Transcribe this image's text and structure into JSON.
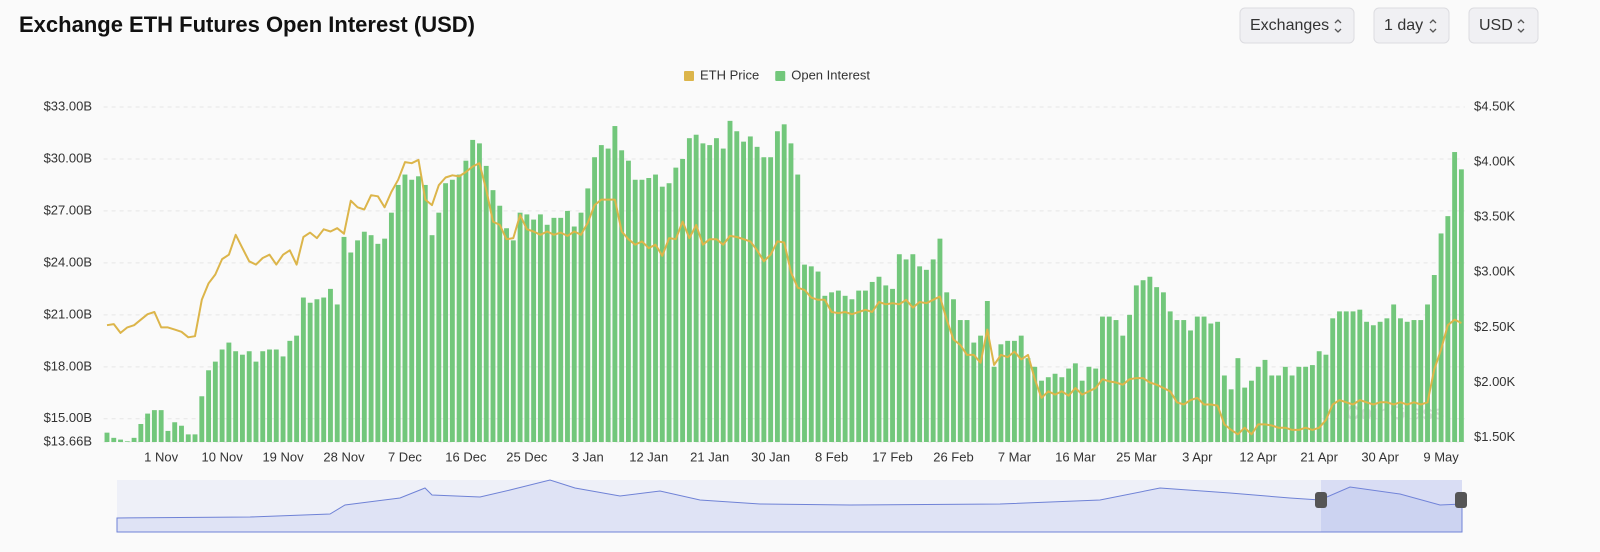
{
  "chart_data": {
    "type": "bar",
    "title": "Exchange ETH Futures Open Interest (USD)",
    "categories": [
      null,
      null,
      null,
      null,
      null,
      null,
      null,
      null,
      "1 Nov",
      null,
      null,
      null,
      null,
      null,
      null,
      null,
      null,
      "10 Nov",
      null,
      null,
      null,
      null,
      null,
      null,
      null,
      null,
      "19 Nov",
      null,
      null,
      null,
      null,
      null,
      null,
      null,
      null,
      "28 Nov",
      null,
      null,
      null,
      null,
      null,
      null,
      null,
      null,
      "7 Dec",
      null,
      null,
      null,
      null,
      null,
      null,
      null,
      null,
      "16 Dec",
      null,
      null,
      null,
      null,
      null,
      null,
      null,
      null,
      "25 Dec",
      null,
      null,
      null,
      null,
      null,
      null,
      null,
      null,
      "3 Jan",
      null,
      null,
      null,
      null,
      null,
      null,
      null,
      null,
      "12 Jan",
      null,
      null,
      null,
      null,
      null,
      null,
      null,
      null,
      "21 Jan",
      null,
      null,
      null,
      null,
      null,
      null,
      null,
      null,
      "30 Jan",
      null,
      null,
      null,
      null,
      null,
      null,
      null,
      null,
      "8 Feb",
      null,
      null,
      null,
      null,
      null,
      null,
      null,
      null,
      "17 Feb",
      null,
      null,
      null,
      null,
      null,
      null,
      null,
      null,
      "26 Feb",
      null,
      null,
      null,
      null,
      null,
      null,
      null,
      null,
      "7 Mar",
      null,
      null,
      null,
      null,
      null,
      null,
      null,
      null,
      "16 Mar",
      null,
      null,
      null,
      null,
      null,
      null,
      null,
      null,
      "25 Mar",
      null,
      null,
      null,
      null,
      null,
      null,
      null,
      null,
      "3 Apr",
      null,
      null,
      null,
      null,
      null,
      null,
      null,
      null,
      "12 Apr",
      null,
      null,
      null,
      null,
      null,
      null,
      null,
      null,
      "21 Apr",
      null,
      null,
      null,
      null,
      null,
      null,
      null,
      null,
      "30 Apr",
      null,
      null,
      null,
      null,
      null,
      null,
      null,
      null,
      "9 May",
      null,
      null,
      null
    ],
    "series": [
      {
        "name": "ETH Price",
        "type": "line",
        "axis": "y2",
        "color": "#dcb54a",
        "values": [
          2.52,
          2.53,
          2.45,
          2.5,
          2.52,
          2.57,
          2.62,
          2.64,
          2.5,
          2.5,
          2.48,
          2.46,
          2.41,
          2.42,
          2.75,
          2.9,
          2.98,
          3.12,
          3.16,
          3.34,
          3.22,
          3.1,
          3.07,
          3.13,
          3.16,
          3.07,
          3.16,
          3.2,
          3.07,
          3.32,
          3.36,
          3.31,
          3.39,
          3.37,
          3.4,
          3.35,
          3.65,
          3.59,
          3.57,
          3.7,
          3.69,
          3.59,
          3.73,
          3.84,
          4.0,
          3.99,
          4.02,
          3.66,
          3.61,
          3.79,
          3.86,
          3.88,
          3.87,
          3.91,
          3.96,
          3.99,
          3.75,
          3.46,
          3.43,
          3.3,
          3.31,
          3.52,
          3.39,
          3.37,
          3.34,
          3.37,
          3.34,
          3.36,
          3.33,
          3.37,
          3.34,
          3.45,
          3.61,
          3.66,
          3.66,
          3.66,
          3.37,
          3.3,
          3.25,
          3.28,
          3.22,
          3.25,
          3.15,
          3.31,
          3.3,
          3.46,
          3.31,
          3.43,
          3.25,
          3.3,
          3.3,
          3.25,
          3.33,
          3.32,
          3.3,
          3.28,
          3.2,
          3.1,
          3.16,
          3.28,
          3.27,
          3.0,
          2.86,
          2.84,
          2.77,
          2.75,
          2.75,
          2.64,
          2.63,
          2.64,
          2.62,
          2.64,
          2.66,
          2.64,
          2.73,
          2.71,
          2.72,
          2.71,
          2.75,
          2.68,
          2.73,
          2.72,
          2.75,
          2.78,
          2.57,
          2.39,
          2.34,
          2.25,
          2.25,
          2.18,
          2.48,
          2.16,
          2.25,
          2.23,
          2.28,
          2.21,
          2.25,
          2.03,
          1.86,
          1.92,
          1.89,
          1.92,
          1.88,
          1.95,
          1.89,
          1.92,
          1.95,
          2.03,
          2.01,
          2.0,
          1.98,
          2.03,
          2.04,
          2.04,
          2.0,
          1.98,
          1.95,
          1.92,
          1.82,
          1.8,
          1.84,
          1.86,
          1.8,
          1.8,
          1.79,
          1.62,
          1.57,
          1.53,
          1.59,
          1.53,
          1.62,
          1.62,
          1.61,
          1.59,
          1.59,
          1.57,
          1.57,
          1.59,
          1.57,
          1.59,
          1.66,
          1.8,
          1.84,
          1.82,
          1.8,
          1.84,
          1.82,
          1.8,
          1.82,
          1.82,
          1.8,
          1.82,
          1.8,
          1.82,
          1.8,
          1.82,
          2.12,
          2.3,
          2.52,
          2.57,
          2.54
        ]
      },
      {
        "name": "Open Interest",
        "type": "bar",
        "color": "#72c77b",
        "values": [
          14.2,
          13.9,
          13.8,
          13.7,
          13.9,
          14.7,
          15.3,
          15.5,
          15.5,
          14.3,
          14.8,
          14.6,
          14.1,
          14.1,
          16.3,
          17.8,
          18.3,
          19.0,
          19.4,
          18.9,
          18.7,
          18.9,
          18.3,
          18.9,
          19.0,
          19.0,
          18.6,
          19.5,
          19.8,
          22.0,
          21.7,
          21.9,
          22.0,
          22.5,
          21.6,
          25.5,
          24.6,
          25.3,
          25.8,
          25.6,
          25.1,
          25.4,
          26.9,
          28.5,
          29.1,
          28.8,
          29.0,
          28.5,
          25.6,
          26.9,
          28.6,
          28.8,
          29.1,
          29.9,
          31.1,
          30.9,
          29.6,
          28.2,
          27.3,
          26.0,
          25.3,
          26.9,
          26.8,
          26.5,
          26.8,
          26.2,
          26.6,
          26.6,
          27.0,
          26.1,
          26.9,
          28.3,
          30.1,
          30.8,
          30.6,
          31.9,
          30.5,
          29.9,
          28.8,
          28.8,
          28.9,
          29.1,
          28.4,
          28.6,
          29.5,
          30.0,
          31.2,
          31.4,
          30.9,
          30.8,
          31.2,
          30.6,
          32.2,
          31.6,
          31.0,
          31.3,
          30.7,
          30.1,
          30.1,
          31.6,
          32.0,
          30.9,
          29.1,
          23.9,
          23.8,
          23.5,
          22.1,
          22.3,
          22.4,
          22.1,
          21.9,
          22.4,
          22.4,
          22.9,
          23.2,
          22.7,
          22.5,
          24.5,
          24.2,
          24.5,
          23.8,
          23.6,
          24.2,
          25.4,
          22.3,
          21.9,
          20.7,
          20.7,
          19.4,
          19.8,
          21.8,
          18.0,
          19.3,
          19.5,
          19.5,
          19.8,
          18.5,
          18.0,
          17.2,
          17.4,
          17.6,
          17.4,
          17.9,
          18.2,
          17.2,
          18.0,
          17.9,
          20.9,
          20.9,
          20.7,
          19.8,
          21.0,
          22.7,
          23.0,
          23.2,
          22.6,
          22.3,
          21.2,
          20.7,
          20.7,
          20.1,
          20.9,
          20.9,
          20.5,
          20.6,
          17.5,
          16.7,
          18.5,
          16.8,
          17.2,
          18.0,
          18.4,
          17.5,
          17.5,
          18.0,
          17.5,
          18.0,
          18.0,
          18.1,
          18.9,
          18.7,
          20.8,
          21.2,
          21.2,
          21.2,
          21.3,
          20.6,
          20.4,
          20.6,
          20.8,
          21.6,
          20.8,
          20.6,
          20.7,
          20.7,
          21.6,
          23.3,
          25.7,
          26.7,
          30.4,
          29.4
        ]
      }
    ],
    "ylim": [
      13.66,
      33
    ],
    "yticks": [
      {
        "value": 13.66,
        "label": "$13.66B"
      },
      {
        "value": 15,
        "label": "$15.00B"
      },
      {
        "value": 18,
        "label": "$18.00B"
      },
      {
        "value": 21,
        "label": "$21.00B"
      },
      {
        "value": 24,
        "label": "$24.00B"
      },
      {
        "value": 27,
        "label": "$27.00B"
      },
      {
        "value": 30,
        "label": "$30.00B"
      },
      {
        "value": 33,
        "label": "$33.00B"
      }
    ],
    "y2lim": [
      1.46,
      4.5
    ],
    "y2ticks": [
      {
        "value": 1.5,
        "label": "$1.50K"
      },
      {
        "value": 2,
        "label": "$2.00K"
      },
      {
        "value": 2.5,
        "label": "$2.50K"
      },
      {
        "value": 3,
        "label": "$3.00K"
      },
      {
        "value": 3.5,
        "label": "$3.50K"
      },
      {
        "value": 4,
        "label": "$4.00K"
      },
      {
        "value": 4.5,
        "label": "$4.50K"
      }
    ],
    "grid": true,
    "legend": "top",
    "watermark": "CoinGlass"
  },
  "controls": [
    "Exchanges",
    "1 day",
    "USD"
  ]
}
